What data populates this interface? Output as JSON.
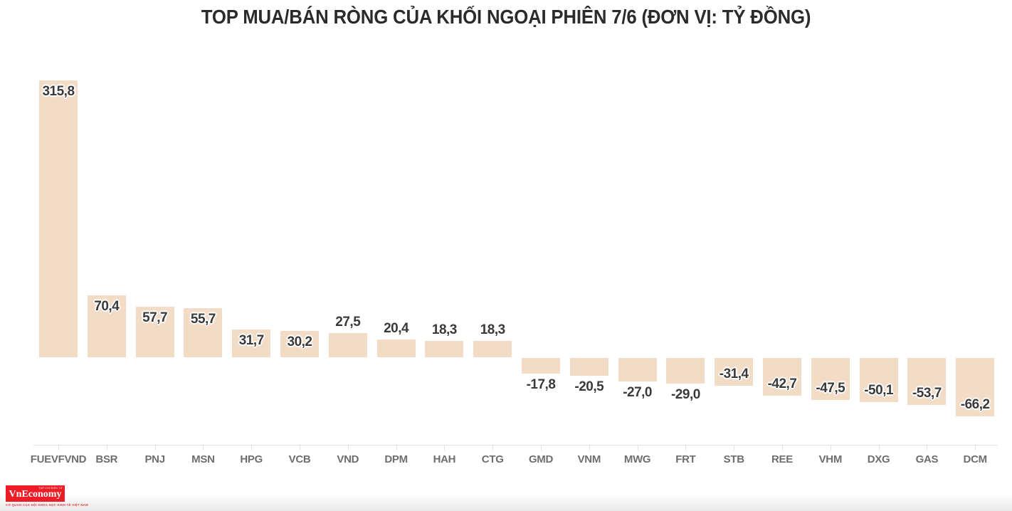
{
  "title": "TOP MUA/BÁN RÒNG CỦA KHỐI NGOẠI PHIÊN 7/6 (ĐƠN VỊ: TỶ ĐỒNG)",
  "chart_data": {
    "type": "bar",
    "title": "TOP MUA/BÁN RÒNG CỦA KHỐI NGOẠI PHIÊN 7/6 (ĐƠN VỊ: TỶ ĐỒNG)",
    "unit": "tỷ đồng",
    "categories": [
      "FUEVFVND",
      "BSR",
      "PNJ",
      "MSN",
      "HPG",
      "VCB",
      "VND",
      "DPM",
      "HAH",
      "CTG",
      "GMD",
      "VNM",
      "MWG",
      "FRT",
      "STB",
      "REE",
      "VHM",
      "DXG",
      "GAS",
      "DCM"
    ],
    "values": [
      315.8,
      70.4,
      57.7,
      55.7,
      31.7,
      30.2,
      27.5,
      20.4,
      18.3,
      18.3,
      -17.8,
      -20.5,
      -27.0,
      -29.0,
      -31.4,
      -42.7,
      -47.5,
      -50.1,
      -53.7,
      -66.2
    ],
    "value_labels": [
      "315,8",
      "70,4",
      "57,7",
      "55,7",
      "31,7",
      "30,2",
      "27,5",
      "20,4",
      "18,3",
      "18,3",
      "-17,8",
      "-20,5",
      "-27,0",
      "-29,0",
      "-31,4",
      "-42,7",
      "-47,5",
      "-50,1",
      "-53,7",
      "-66,2"
    ],
    "bar_color": "#f3dcc6",
    "label_color": "#3a3a3a",
    "axis_label_color": "#6e6e6e",
    "baseline": 0,
    "ylim": [
      -70,
      320
    ],
    "grid": "off",
    "legend": "none"
  },
  "branding": {
    "logo_text": "VnEconomy",
    "logo_sub_text": "TẠP CHÍ ĐIỆN TỬ",
    "tagline": "CƠ QUAN CỦA HỘI KHOA HỌC KINH TẾ VIỆT NAM",
    "logo_color": "#ee1c24"
  }
}
